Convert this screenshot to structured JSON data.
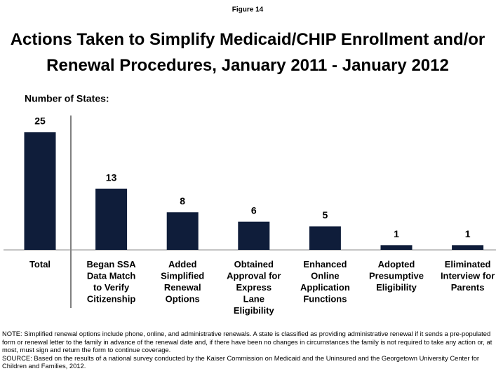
{
  "chart_data": {
    "type": "bar",
    "figure_label": "Figure 14",
    "title": "Actions Taken to Simplify Medicaid/CHIP Enrollment and/or Renewal Procedures, January 2011 - January 2012",
    "y_axis_label": "Number of States:",
    "categories": [
      "Total",
      "Began SSA Data Match to Verify Citizenship",
      "Added Simplified Renewal Options",
      "Obtained Approval for Express Lane Eligibility",
      "Enhanced Online Application Functions",
      "Adopted Presumptive Eligibility",
      "Eliminated Interview for Parents"
    ],
    "values": [
      25,
      13,
      8,
      6,
      5,
      1,
      1
    ],
    "color": "#0f1d3a",
    "ylim": [
      0,
      25
    ],
    "note": "NOTE: Simplified renewal options include phone, online, and administrative renewals. A state is classified as providing administrative renewal if it sends a pre-populated form or renewal letter to the family in advance of the renewal date and, if there have been no changes in circumstances the family is not required to take any action or, at most, must sign and return the form to continue coverage.",
    "source": "SOURCE: Based on the results of a national survey conducted by the Kaiser Commission on Medicaid and the Uninsured and the Georgetown University Center for Children and Families, 2012."
  }
}
